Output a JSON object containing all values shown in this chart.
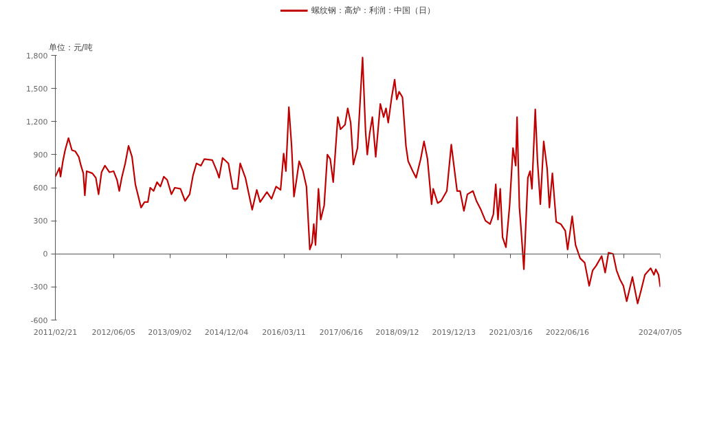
{
  "chart_data": {
    "type": "line",
    "ylabel": "单位：元/吨",
    "legend": "top",
    "marker": "none",
    "line_style": "solid",
    "xlim": [
      "2011-02-21",
      "2024-07-05"
    ],
    "xticks": [
      {
        "value": "2011-02-21",
        "label": "2011/02/21"
      },
      {
        "value": "2012-06-05",
        "label": "2012/06/05"
      },
      {
        "value": "2013-09-02",
        "label": "2013/09/02"
      },
      {
        "value": "2014-12-04",
        "label": "2014/12/04"
      },
      {
        "value": "2016-03-11",
        "label": "2016/03/11"
      },
      {
        "value": "2017-06-16",
        "label": "2017/06/16"
      },
      {
        "value": "2018-09-12",
        "label": "2018/09/12"
      },
      {
        "value": "2019-12-13",
        "label": "2019/12/13"
      },
      {
        "value": "2021-03-16",
        "label": "2021/03/16"
      },
      {
        "value": "2022-06-16",
        "label": "2022/06/16"
      },
      {
        "value": "2023-09-16",
        "label": null
      },
      {
        "value": "2024-07-05",
        "label": "2024/07/05"
      }
    ],
    "ylim": [
      -600,
      1800
    ],
    "yticks": [
      {
        "value": -600,
        "label": "-600"
      },
      {
        "value": -300,
        "label": "-300"
      },
      0,
      300,
      600,
      900,
      {
        "value": 1200,
        "label": "1,200"
      },
      {
        "value": 1500,
        "label": "1,500"
      },
      {
        "value": 1800,
        "label": "1,800"
      }
    ],
    "x": [
      "2011-02-21",
      "2011-03-26",
      "2011-04-04",
      "2011-04-23",
      "2011-05-11",
      "2011-06-07",
      "2011-07-05",
      "2011-08-01",
      "2011-08-29",
      "2011-09-16",
      "2011-10-05",
      "2011-10-17",
      "2011-11-01",
      "2011-12-17",
      "2012-01-14",
      "2012-02-05",
      "2012-02-29",
      "2012-03-27",
      "2012-05-03",
      "2012-06-05",
      "2012-07-03",
      "2012-07-21",
      "2012-08-10",
      "2012-09-07",
      "2012-10-04",
      "2012-11-01",
      "2012-11-28",
      "2013-01-13",
      "2013-02-10",
      "2013-03-09",
      "2013-03-28",
      "2013-04-24",
      "2013-05-22",
      "2013-06-18",
      "2013-07-16",
      "2013-08-12",
      "2013-09-15",
      "2013-10-12",
      "2013-11-27",
      "2014-01-03",
      "2014-02-09",
      "2014-03-08",
      "2014-04-05",
      "2014-05-11",
      "2014-06-08",
      "2014-08-11",
      "2014-09-17",
      "2014-10-05",
      "2014-11-02",
      "2014-12-19",
      "2015-01-24",
      "2015-03-02",
      "2015-03-24",
      "2015-05-05",
      "2015-06-29",
      "2015-08-05",
      "2015-09-01",
      "2015-10-26",
      "2015-12-02",
      "2016-01-08",
      "2016-02-13",
      "2016-03-09",
      "2016-03-27",
      "2016-04-20",
      "2016-05-12",
      "2016-05-31",
      "2016-06-18",
      "2016-07-12",
      "2016-08-12",
      "2016-09-09",
      "2016-10-06",
      "2016-10-25",
      "2016-11-07",
      "2016-11-21",
      "2016-12-15",
      "2017-01-02",
      "2017-01-30",
      "2017-02-25",
      "2017-03-20",
      "2017-04-13",
      "2017-05-20",
      "2017-06-11",
      "2017-07-17",
      "2017-08-08",
      "2017-09-01",
      "2017-09-23",
      "2017-10-26",
      "2017-12-06",
      "2017-12-30",
      "2018-01-13",
      "2018-02-01",
      "2018-02-23",
      "2018-03-22",
      "2018-04-28",
      "2018-05-25",
      "2018-06-13",
      "2018-07-01",
      "2018-07-29",
      "2018-08-22",
      "2018-09-08",
      "2018-09-27",
      "2018-10-24",
      "2018-11-21",
      "2018-12-09",
      "2019-01-15",
      "2019-02-11",
      "2019-03-20",
      "2019-04-16",
      "2019-05-14",
      "2019-06-16",
      "2019-06-29",
      "2019-08-04",
      "2019-09-01",
      "2019-10-17",
      "2019-11-22",
      "2020-01-08",
      "2020-02-01",
      "2020-03-03",
      "2020-03-31",
      "2020-05-15",
      "2020-06-12",
      "2020-07-18",
      "2020-08-24",
      "2020-09-30",
      "2020-10-27",
      "2020-11-15",
      "2020-12-03",
      "2020-12-21",
      "2021-01-09",
      "2021-02-05",
      "2021-03-07",
      "2021-04-03",
      "2021-04-25",
      "2021-05-06",
      "2021-05-25",
      "2021-06-07",
      "2021-06-30",
      "2021-08-01",
      "2021-08-19",
      "2021-09-03",
      "2021-09-30",
      "2021-10-17",
      "2021-11-10",
      "2021-12-07",
      "2022-01-04",
      "2022-01-22",
      "2022-02-15",
      "2022-03-18",
      "2022-04-24",
      "2022-05-30",
      "2022-06-18",
      "2022-07-25",
      "2022-08-21",
      "2022-09-27",
      "2022-11-03",
      "2022-12-09",
      "2023-01-06",
      "2023-02-02",
      "2023-03-20",
      "2023-04-17",
      "2023-05-14",
      "2023-06-20",
      "2023-07-18",
      "2023-08-14",
      "2023-09-11",
      "2023-10-08",
      "2023-11-23",
      "2024-01-04",
      "2024-01-30",
      "2024-03-03",
      "2024-04-18",
      "2024-05-15",
      "2024-05-30",
      "2024-06-21",
      "2024-07-05"
    ],
    "series": [
      {
        "name": "螺纹钢：高炉：利润：中国（日）",
        "color": "#c00000",
        "values": [
          700,
          780,
          700,
          840,
          940,
          1050,
          940,
          930,
          880,
          800,
          730,
          530,
          750,
          730,
          690,
          540,
          740,
          800,
          740,
          750,
          670,
          570,
          690,
          820,
          980,
          880,
          630,
          420,
          470,
          470,
          600,
          570,
          650,
          610,
          700,
          670,
          540,
          600,
          590,
          480,
          540,
          710,
          820,
          800,
          860,
          850,
          750,
          690,
          870,
          820,
          590,
          590,
          820,
          690,
          400,
          580,
          470,
          560,
          500,
          610,
          580,
          910,
          750,
          1330,
          980,
          520,
          650,
          840,
          750,
          610,
          40,
          100,
          270,
          80,
          590,
          310,
          440,
          900,
          860,
          650,
          1240,
          1130,
          1170,
          1320,
          1190,
          810,
          960,
          1780,
          1110,
          900,
          1090,
          1240,
          880,
          1360,
          1240,
          1320,
          1190,
          1420,
          1580,
          1400,
          1470,
          1420,
          980,
          840,
          750,
          690,
          860,
          1020,
          860,
          450,
          590,
          460,
          480,
          570,
          990,
          570,
          570,
          390,
          540,
          570,
          480,
          400,
          300,
          270,
          360,
          630,
          310,
          590,
          150,
          60,
          440,
          960,
          800,
          1240,
          420,
          230,
          -140,
          690,
          750,
          590,
          1310,
          860,
          450,
          1020,
          770,
          420,
          730,
          290,
          270,
          210,
          40,
          340,
          80,
          -40,
          -80,
          -290,
          -150,
          -110,
          -20,
          -170,
          10,
          0,
          -150,
          -230,
          -290,
          -430,
          -210,
          -450,
          -340,
          -190,
          -130,
          -190,
          -140,
          -190,
          -300
        ]
      }
    ]
  }
}
